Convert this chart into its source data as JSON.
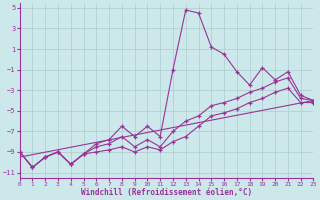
{
  "xlabel": "Windchill (Refroidissement éolien,°C)",
  "background_color": "#cce8ea",
  "grid_color": "#aacccc",
  "line_color": "#993399",
  "xlim": [
    0,
    23
  ],
  "ylim": [
    -11.5,
    5.5
  ],
  "xticks": [
    0,
    1,
    2,
    3,
    4,
    5,
    6,
    7,
    8,
    9,
    10,
    11,
    12,
    13,
    14,
    15,
    16,
    17,
    18,
    19,
    20,
    21,
    22,
    23
  ],
  "yticks": [
    -11,
    -9,
    -7,
    -5,
    -3,
    -1,
    1,
    3,
    5
  ],
  "line1_x": [
    0,
    1,
    2,
    3,
    4,
    5,
    6,
    7,
    8,
    9,
    10,
    11,
    12,
    13,
    14,
    15,
    16,
    17,
    18,
    19,
    20,
    21,
    22,
    23
  ],
  "line1_y": [
    -9,
    -10.5,
    -9.5,
    -9,
    -10.2,
    -9.2,
    -8.2,
    -7.8,
    -6.5,
    -7.5,
    -6.5,
    -7.5,
    -1.0,
    4.8,
    4.5,
    1.2,
    0.5,
    -1.2,
    -2.5,
    -0.8,
    -2.0,
    -1.2,
    -3.5,
    -4.0
  ],
  "line2_x": [
    0,
    1,
    2,
    3,
    4,
    5,
    6,
    7,
    8,
    9,
    10,
    11,
    12,
    13,
    14,
    15,
    16,
    17,
    18,
    19,
    20,
    21,
    22,
    23
  ],
  "line2_y": [
    -9,
    -10.5,
    -9.5,
    -9,
    -10.2,
    -9.2,
    -8.5,
    -8.2,
    -7.5,
    -8.5,
    -7.8,
    -8.5,
    -7.0,
    -6.0,
    -5.5,
    -4.5,
    -4.2,
    -3.8,
    -3.2,
    -2.8,
    -2.2,
    -1.8,
    -3.8,
    -4.0
  ],
  "line3_x": [
    0,
    1,
    2,
    3,
    4,
    5,
    6,
    7,
    8,
    9,
    10,
    11,
    12,
    13,
    14,
    15,
    16,
    17,
    18,
    19,
    20,
    21,
    22,
    23
  ],
  "line3_y": [
    -9,
    -10.5,
    -9.5,
    -9,
    -10.2,
    -9.2,
    -9.0,
    -8.8,
    -8.5,
    -9,
    -8.5,
    -8.8,
    -8.0,
    -7.5,
    -6.5,
    -5.5,
    -5.2,
    -4.8,
    -4.2,
    -3.8,
    -3.2,
    -2.8,
    -4.2,
    -4.2
  ],
  "line4_x": [
    0,
    23
  ],
  "line4_y": [
    -9.5,
    -4.0
  ]
}
